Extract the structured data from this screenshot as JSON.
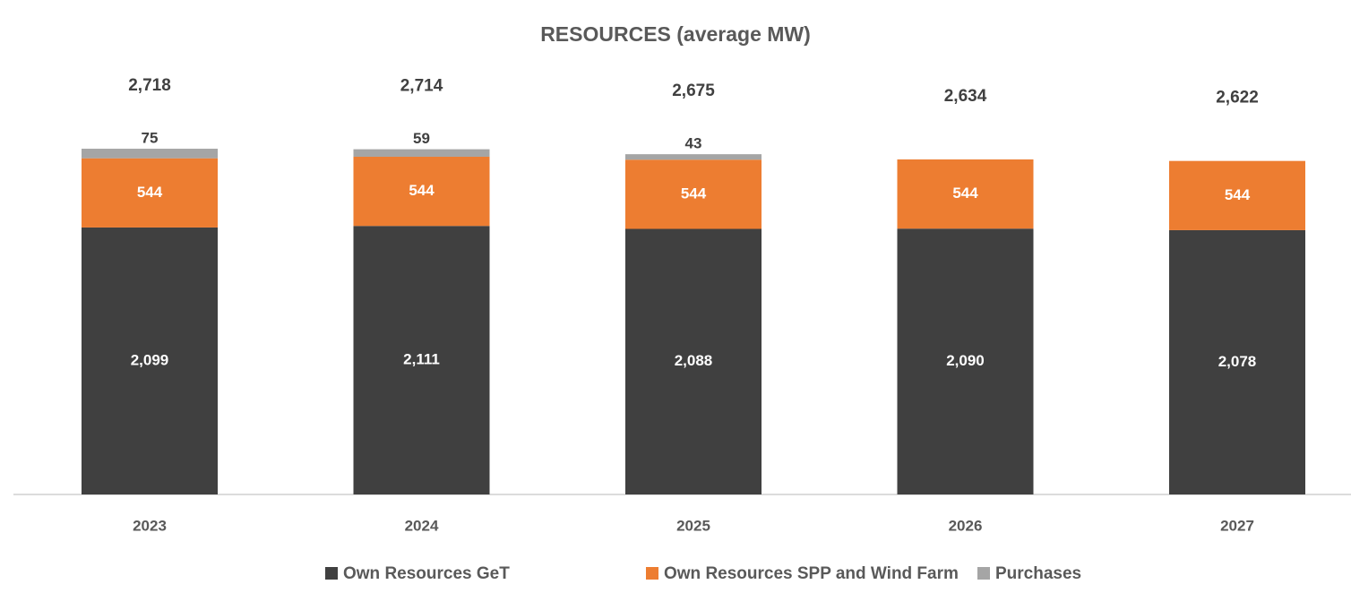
{
  "chart_data": {
    "type": "stacked_bar",
    "title": "RESOURCES (average MW)",
    "categories": [
      "2023",
      "2024",
      "2025",
      "2026",
      "2027"
    ],
    "series": [
      {
        "name": "Own Resources GeT",
        "color": "#404040",
        "values": [
          2099,
          2111,
          2088,
          2090,
          2078
        ],
        "value_labels": [
          "2,099",
          "2,111",
          "2,088",
          "2,090",
          "2,078"
        ]
      },
      {
        "name": "Own Resources SPP and Wind Farm",
        "color": "#ed7d31",
        "values": [
          544,
          544,
          544,
          544,
          544
        ]
      },
      {
        "name": "Purchases",
        "color": "#a5a5a5",
        "values": [
          75,
          59,
          43,
          null,
          null
        ]
      }
    ],
    "totals": {
      "values": [
        2718,
        2714,
        2675,
        2634,
        2622
      ],
      "value_labels": [
        "2,718",
        "2,714",
        "2,675",
        "2,634",
        "2,622"
      ]
    },
    "legend": "bottom"
  }
}
